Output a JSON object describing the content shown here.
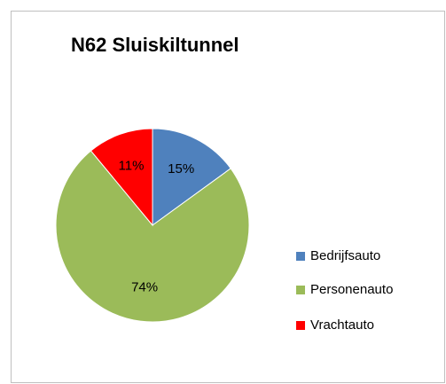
{
  "chart_data": {
    "type": "pie",
    "title": "N62 Sluiskiltunnel",
    "categories": [
      "Bedrijfsauto",
      "Personenauto",
      "Vrachtauto"
    ],
    "values": [
      15,
      74,
      11
    ],
    "value_labels": [
      "15%",
      "74%",
      "11%"
    ],
    "colors": [
      "#4f81bd",
      "#9bbb59",
      "#ff0000"
    ],
    "legend": "right"
  }
}
